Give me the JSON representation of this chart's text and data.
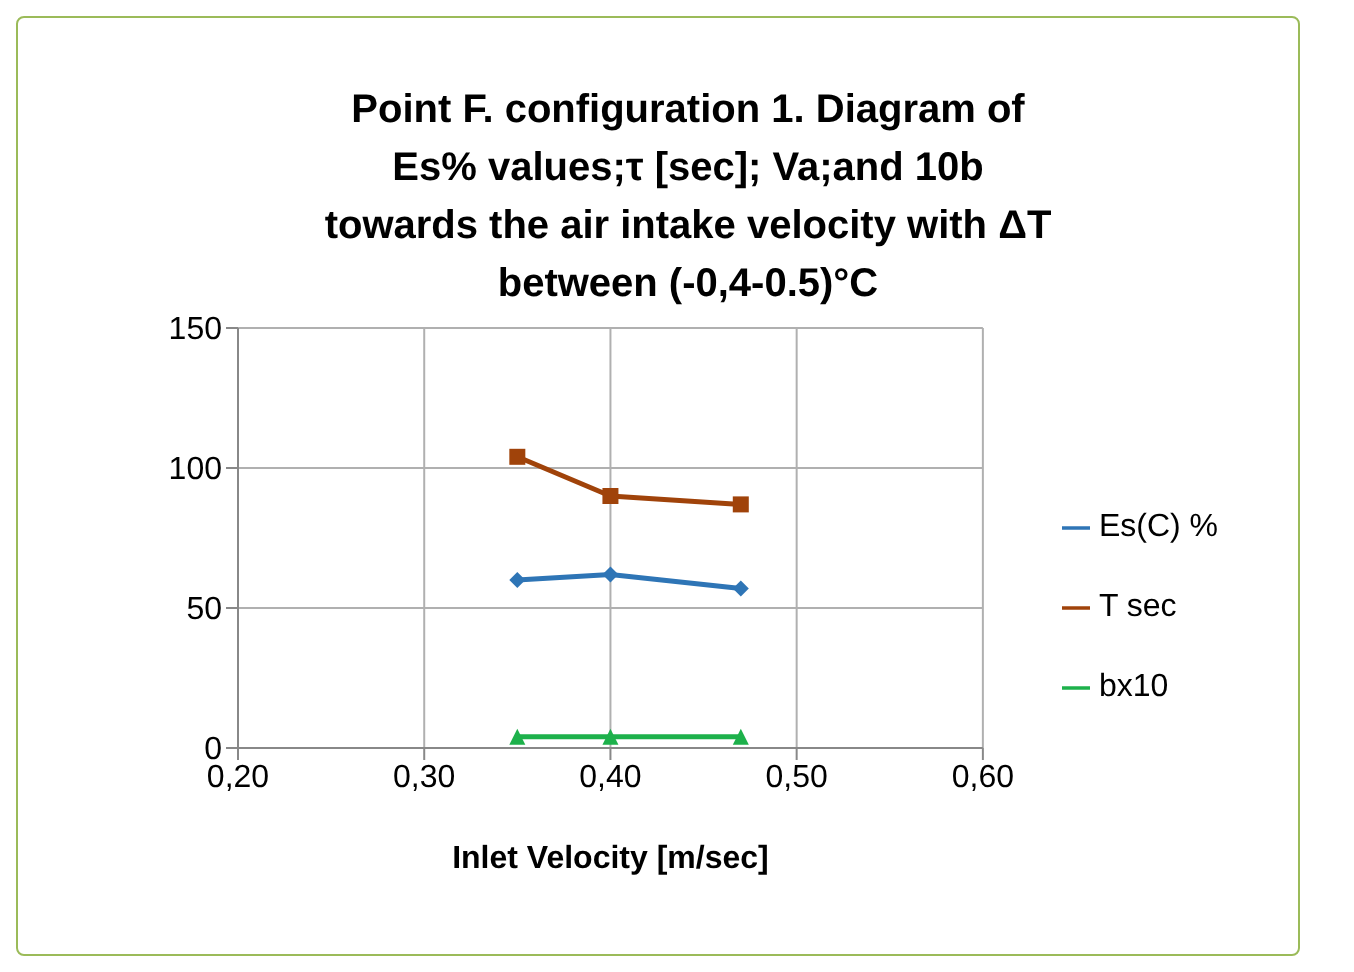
{
  "chart_data": {
    "type": "line",
    "title": "Point F. configuration 1. Diagram of Es% values;τ [sec]; Va;and 10b towards the air intake velocity with ΔT between (-0,4-0.5)°C",
    "xlabel": "Inlet Velocity [m/sec]",
    "x": [
      0.35,
      0.4,
      0.47
    ],
    "series": [
      {
        "name": "Es(C) %",
        "color": "#2e75b6",
        "values": [
          60,
          62,
          57
        ],
        "marker": "diamond"
      },
      {
        "name": "T sec",
        "color": "#a0430a",
        "values": [
          104,
          90,
          87
        ],
        "marker": "square"
      },
      {
        "name": "bx10",
        "color": "#1db14b",
        "values": [
          4,
          4,
          4
        ],
        "marker": "triangle"
      }
    ],
    "xlim": [
      0.2,
      0.6
    ],
    "xticks": [
      {
        "value": 0.2,
        "label": "0,20"
      },
      {
        "value": 0.3,
        "label": "0,30"
      },
      {
        "value": 0.4,
        "label": "0,40"
      },
      {
        "value": 0.5,
        "label": "0,50"
      },
      {
        "value": 0.6,
        "label": "0,60"
      }
    ],
    "ylim": [
      0,
      150
    ],
    "yticks": [
      0,
      50,
      100,
      150
    ],
    "grid": true,
    "legend": "right",
    "line_style": "solid"
  }
}
